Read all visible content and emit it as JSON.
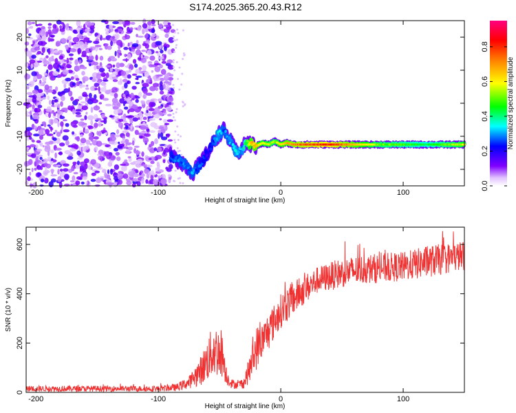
{
  "figure": {
    "title": "S174.2025.365.20.43.R12"
  },
  "chart_data": [
    {
      "type": "heatmap",
      "name": "spectrogram",
      "xlabel": "Height of straight line (km)",
      "ylabel": "Frequency (Hz)",
      "xlim": [
        -208,
        150
      ],
      "ylim": [
        -25,
        25
      ],
      "xticks": [
        -200,
        -100,
        0,
        100
      ],
      "yticks": [
        -20,
        -10,
        0,
        10,
        20
      ],
      "colorbar": {
        "label": "Normalized spectral amplitude",
        "range": [
          0,
          0.95
        ],
        "ticks": [
          0.0,
          0.2,
          0.4,
          0.6,
          0.8
        ],
        "tick_labels": [
          "0.0",
          "0.2",
          "0.4",
          "0.6",
          "0.8"
        ],
        "colors": [
          "#ffffff",
          "#8000ff",
          "#0000ff",
          "#00ffff",
          "#00ff00",
          "#ffff00",
          "#ff8000",
          "#ff0000",
          "#ff0080"
        ]
      },
      "signal_track": {
        "x": [
          -90,
          -80,
          -72,
          -65,
          -58,
          -52,
          -47,
          -42,
          -36,
          -32,
          -28,
          -24,
          -20,
          -15,
          -10,
          -5,
          0,
          5,
          10,
          20,
          40,
          60,
          80,
          100,
          120,
          150
        ],
        "frequency": [
          -16,
          -18,
          -21,
          -18,
          -14,
          -10,
          -8,
          -11,
          -15,
          -14,
          -12,
          -12.5,
          -13,
          -12,
          -12.5,
          -11.5,
          -12.5,
          -12,
          -12.5,
          -12.5,
          -12.5,
          -12.5,
          -12.5,
          -12.5,
          -12.5,
          -12.5
        ],
        "amplitude": [
          0.25,
          0.3,
          0.3,
          0.25,
          0.2,
          0.35,
          0.3,
          0.3,
          0.35,
          0.3,
          0.5,
          0.7,
          0.7,
          0.6,
          0.6,
          0.55,
          0.65,
          0.7,
          0.75,
          0.8,
          0.85,
          0.7,
          0.55,
          0.5,
          0.45,
          0.6
        ]
      },
      "noise_region": {
        "x_range": [
          -208,
          -88
        ],
        "description_level": 0.12
      }
    },
    {
      "type": "line",
      "name": "snr",
      "xlabel": "Height of straight line (km)",
      "ylabel": "SNR (10 * v/v)",
      "xlim": [
        -208,
        150
      ],
      "ylim": [
        0,
        670
      ],
      "xticks": [
        -200,
        -100,
        0,
        100
      ],
      "yticks": [
        0,
        200,
        400,
        600
      ],
      "color": "#f03232",
      "envelope": {
        "x": [
          -208,
          -100,
          -85,
          -75,
          -65,
          -55,
          -48,
          -44,
          -40,
          -35,
          -30,
          -25,
          -20,
          -15,
          -10,
          -5,
          0,
          10,
          20,
          30,
          50,
          70,
          100,
          120,
          150
        ],
        "mean": [
          15,
          15,
          20,
          40,
          90,
          170,
          160,
          60,
          35,
          30,
          40,
          100,
          180,
          210,
          250,
          290,
          330,
          380,
          420,
          455,
          485,
          500,
          510,
          530,
          555
        ],
        "spread": [
          12,
          12,
          15,
          25,
          60,
          110,
          100,
          30,
          20,
          15,
          25,
          60,
          90,
          70,
          80,
          70,
          70,
          70,
          60,
          55,
          60,
          60,
          60,
          65,
          60
        ]
      }
    }
  ]
}
